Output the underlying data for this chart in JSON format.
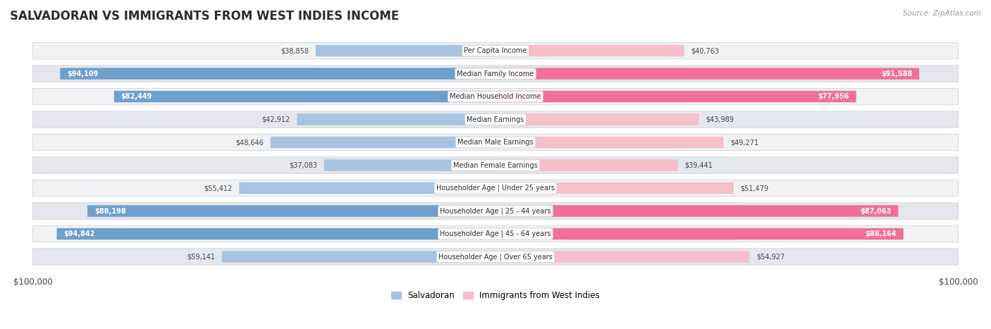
{
  "title": "SALVADORAN VS IMMIGRANTS FROM WEST INDIES INCOME",
  "source": "Source: ZipAtlas.com",
  "categories": [
    "Per Capita Income",
    "Median Family Income",
    "Median Household Income",
    "Median Earnings",
    "Median Male Earnings",
    "Median Female Earnings",
    "Householder Age | Under 25 years",
    "Householder Age | 25 - 44 years",
    "Householder Age | 45 - 64 years",
    "Householder Age | Over 65 years"
  ],
  "salvadoran": [
    38858,
    94109,
    82449,
    42912,
    48646,
    37083,
    55412,
    88198,
    94842,
    59141
  ],
  "west_indies": [
    40763,
    91588,
    77956,
    43989,
    49271,
    39441,
    51479,
    87063,
    88164,
    54927
  ],
  "salvadoran_labels": [
    "$38,858",
    "$94,109",
    "$82,449",
    "$42,912",
    "$48,646",
    "$37,083",
    "$55,412",
    "$88,198",
    "$94,842",
    "$59,141"
  ],
  "west_indies_labels": [
    "$40,763",
    "$91,588",
    "$77,956",
    "$43,989",
    "$49,271",
    "$39,441",
    "$51,479",
    "$87,063",
    "$88,164",
    "$54,927"
  ],
  "max_value": 100000,
  "blue_light": "#a8c4e0",
  "blue_dark": "#6fa0cc",
  "pink_light": "#f5bfcc",
  "pink_dark": "#f07098",
  "row_bg_light": "#f0f2f5",
  "row_bg_dark": "#e4e7ed",
  "title_color": "#2d2d2d",
  "label_dark_color": "#555555",
  "label_white_color": "#ffffff",
  "legend_blue": "Salvadoran",
  "legend_pink": "Immigrants from West Indies"
}
